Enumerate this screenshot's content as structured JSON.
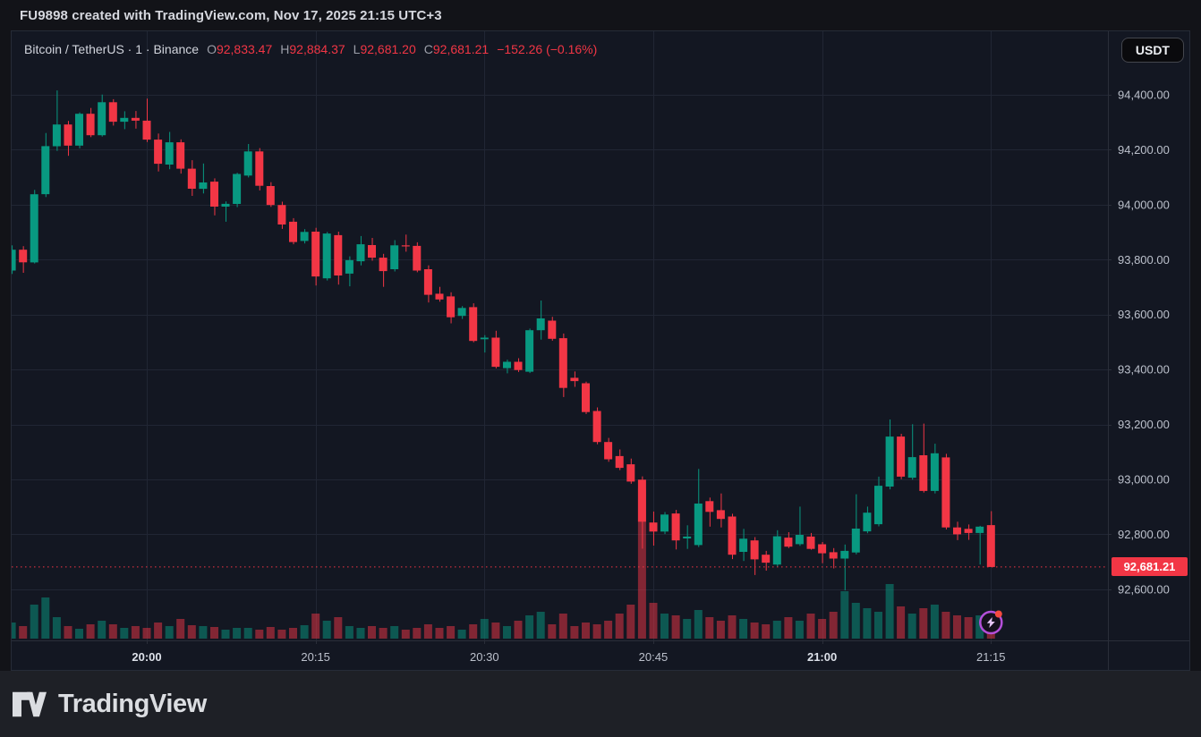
{
  "page": {
    "title_bar": "FU9898 created with TradingView.com, Nov 17, 2025 21:15 UTC+3"
  },
  "header": {
    "symbol_title": "Bitcoin / TetherUS · 1 · Binance",
    "ohlc": {
      "o_label": "O",
      "o": "92,833.47",
      "h_label": "H",
      "h": "92,884.37",
      "l_label": "L",
      "l": "92,681.20",
      "c_label": "C",
      "c": "92,681.21",
      "change": "−152.26 (−0.16%)"
    },
    "currency_button": "USDT"
  },
  "price_scale": {
    "current_price_label": "92,681.21"
  },
  "footer": {
    "brand": "TradingView",
    "logo_icon": "tradingview-logo-icon"
  },
  "colors": {
    "up": "#089981",
    "down": "#f23645",
    "accent_red": "#f23645",
    "chart_background": "#131722",
    "grid": "#212634",
    "axis_line": "#2a2e39",
    "axis_text": "#bcc1cc",
    "axis_text_bold": "#dde1e9",
    "badge_purple": "#b44fd9",
    "badge_bolt": "#e7c7f7",
    "badge_dot": "#f54a3e"
  },
  "chart_data": {
    "type": "candlestick",
    "title": "Bitcoin / TetherUS 1-minute, Binance",
    "xlabel": "time",
    "ylabel": "price (USDT)",
    "grid": true,
    "volume_overlay": true,
    "current_price": 92681.21,
    "y_ticks": [
      {
        "label": "94,400.00",
        "value": 94400
      },
      {
        "label": "94,200.00",
        "value": 94200
      },
      {
        "label": "94,000.00",
        "value": 94000
      },
      {
        "label": "93,800.00",
        "value": 93800
      },
      {
        "label": "93,600.00",
        "value": 93600
      },
      {
        "label": "93,400.00",
        "value": 93400
      },
      {
        "label": "93,200.00",
        "value": 93200
      },
      {
        "label": "93,000.00",
        "value": 93000
      },
      {
        "label": "92,800.00",
        "value": 92800
      },
      {
        "label": "92,600.00",
        "value": 92600
      }
    ],
    "x_ticks": [
      {
        "label": "20:00",
        "index": 12,
        "bold": true
      },
      {
        "label": "20:15",
        "index": 27,
        "bold": false
      },
      {
        "label": "20:30",
        "index": 42,
        "bold": false
      },
      {
        "label": "20:45",
        "index": 57,
        "bold": false
      },
      {
        "label": "21:00",
        "index": 72,
        "bold": true
      },
      {
        "label": "21:15",
        "index": 87,
        "bold": false
      }
    ],
    "candles_format": [
      "time",
      "open",
      "high",
      "low",
      "close",
      "volume_px"
    ],
    "candles": [
      [
        "19:48",
        93760,
        93852,
        93748,
        93836,
        18
      ],
      [
        "19:49",
        93836,
        93849,
        93752,
        93790,
        14
      ],
      [
        "19:50",
        93790,
        94054,
        93786,
        94038,
        38
      ],
      [
        "19:51",
        94038,
        94261,
        94028,
        94213,
        46
      ],
      [
        "19:52",
        94213,
        94416,
        94196,
        94292,
        24
      ],
      [
        "19:53",
        94292,
        94305,
        94178,
        94215,
        14
      ],
      [
        "19:54",
        94215,
        94336,
        94205,
        94331,
        11
      ],
      [
        "19:55",
        94331,
        94352,
        94246,
        94253,
        16
      ],
      [
        "19:56",
        94253,
        94401,
        94248,
        94373,
        20
      ],
      [
        "19:57",
        94373,
        94384,
        94288,
        94302,
        16
      ],
      [
        "19:58",
        94302,
        94340,
        94275,
        94316,
        12
      ],
      [
        "19:59",
        94316,
        94341,
        94277,
        94306,
        14
      ],
      [
        "20:00",
        94306,
        94386,
        94228,
        94237,
        12
      ],
      [
        "20:01",
        94237,
        94259,
        94121,
        94149,
        18
      ],
      [
        "20:02",
        94146,
        94265,
        94129,
        94227,
        14
      ],
      [
        "20:03",
        94227,
        94238,
        94113,
        94131,
        22
      ],
      [
        "20:04",
        94131,
        94162,
        94032,
        94058,
        15
      ],
      [
        "20:05",
        94058,
        94150,
        94041,
        94081,
        14
      ],
      [
        "20:06",
        94084,
        94096,
        93961,
        93993,
        13
      ],
      [
        "20:07",
        93993,
        94012,
        93938,
        94003,
        10
      ],
      [
        "20:08",
        94003,
        94116,
        93991,
        94112,
        12
      ],
      [
        "20:09",
        94106,
        94221,
        94099,
        94194,
        12
      ],
      [
        "20:10",
        94194,
        94206,
        94052,
        94069,
        10
      ],
      [
        "20:11",
        94068,
        94082,
        93992,
        93999,
        13
      ],
      [
        "20:12",
        93999,
        94011,
        93912,
        93928,
        10
      ],
      [
        "20:13",
        93938,
        93951,
        93856,
        93864,
        12
      ],
      [
        "20:14",
        93868,
        93911,
        93859,
        93901,
        15
      ],
      [
        "20:15",
        93902,
        93916,
        93706,
        93739,
        28
      ],
      [
        "20:16",
        93732,
        93901,
        93724,
        93895,
        20
      ],
      [
        "20:17",
        93889,
        93902,
        93709,
        93742,
        24
      ],
      [
        "20:18",
        93749,
        93812,
        93703,
        93798,
        14
      ],
      [
        "20:19",
        93794,
        93886,
        93779,
        93856,
        12
      ],
      [
        "20:20",
        93853,
        93879,
        93796,
        93807,
        14
      ],
      [
        "20:21",
        93807,
        93821,
        93701,
        93758,
        12
      ],
      [
        "20:22",
        93765,
        93871,
        93757,
        93852,
        14
      ],
      [
        "20:23",
        93852,
        93891,
        93829,
        93848,
        10
      ],
      [
        "20:24",
        93850,
        93863,
        93754,
        93760,
        12
      ],
      [
        "20:25",
        93765,
        93779,
        93644,
        93672,
        16
      ],
      [
        "20:26",
        93676,
        93701,
        93647,
        93655,
        12
      ],
      [
        "20:27",
        93666,
        93681,
        93568,
        93590,
        14
      ],
      [
        "20:28",
        93595,
        93631,
        93584,
        93624,
        10
      ],
      [
        "20:29",
        93627,
        93641,
        93499,
        93504,
        16
      ],
      [
        "20:30",
        93510,
        93525,
        93462,
        93516,
        22
      ],
      [
        "20:31",
        93516,
        93541,
        93404,
        93410,
        18
      ],
      [
        "20:32",
        93405,
        93436,
        93386,
        93428,
        14
      ],
      [
        "20:33",
        93428,
        93441,
        93391,
        93398,
        20
      ],
      [
        "20:34",
        93392,
        93549,
        93387,
        93543,
        26
      ],
      [
        "20:35",
        93543,
        93651,
        93509,
        93586,
        30
      ],
      [
        "20:36",
        93578,
        93592,
        93505,
        93512,
        16
      ],
      [
        "20:37",
        93514,
        93531,
        93300,
        93333,
        28
      ],
      [
        "20:38",
        93370,
        93393,
        93337,
        93358,
        14
      ],
      [
        "20:39",
        93350,
        93356,
        93238,
        93245,
        18
      ],
      [
        "20:40",
        93249,
        93262,
        93128,
        93136,
        16
      ],
      [
        "20:41",
        93136,
        93151,
        93064,
        93073,
        20
      ],
      [
        "20:42",
        93085,
        93109,
        93034,
        93042,
        28
      ],
      [
        "20:43",
        93055,
        93076,
        92984,
        92992,
        38
      ],
      [
        "20:44",
        92999,
        93011,
        92748,
        92846,
        168
      ],
      [
        "20:45",
        92843,
        92883,
        92759,
        92810,
        40
      ],
      [
        "20:46",
        92810,
        92881,
        92801,
        92872,
        28
      ],
      [
        "20:47",
        92876,
        92889,
        92745,
        92778,
        26
      ],
      [
        "20:48",
        92785,
        92833,
        92747,
        92792,
        22
      ],
      [
        "20:49",
        92761,
        93038,
        92754,
        92912,
        32
      ],
      [
        "20:50",
        92921,
        92934,
        92828,
        92882,
        24
      ],
      [
        "20:51",
        92888,
        92949,
        92825,
        92856,
        20
      ],
      [
        "20:52",
        92865,
        92875,
        92710,
        92726,
        26
      ],
      [
        "20:53",
        92736,
        92820,
        92703,
        92784,
        22
      ],
      [
        "20:54",
        92778,
        92790,
        92652,
        92709,
        18
      ],
      [
        "20:55",
        92726,
        92740,
        92668,
        92697,
        16
      ],
      [
        "20:56",
        92690,
        92815,
        92683,
        92793,
        20
      ],
      [
        "20:57",
        92788,
        92808,
        92750,
        92755,
        24
      ],
      [
        "20:58",
        92764,
        92901,
        92758,
        92798,
        20
      ],
      [
        "20:59",
        92792,
        92805,
        92744,
        92747,
        28
      ],
      [
        "21:00",
        92764,
        92772,
        92695,
        92731,
        22
      ],
      [
        "21:01",
        92735,
        92750,
        92676,
        92712,
        30
      ],
      [
        "21:02",
        92712,
        92763,
        92596,
        92740,
        53
      ],
      [
        "21:03",
        92734,
        92946,
        92727,
        92821,
        40
      ],
      [
        "21:04",
        92811,
        92901,
        92804,
        92879,
        34
      ],
      [
        "21:05",
        92837,
        93010,
        92829,
        92977,
        30
      ],
      [
        "21:06",
        92974,
        93218,
        92964,
        93156,
        61
      ],
      [
        "21:07",
        93156,
        93166,
        93001,
        93010,
        36
      ],
      [
        "21:08",
        93006,
        93201,
        92999,
        93081,
        28
      ],
      [
        "21:09",
        93088,
        93203,
        92952,
        92958,
        34
      ],
      [
        "21:10",
        92958,
        93130,
        92949,
        93095,
        38
      ],
      [
        "21:11",
        93080,
        93093,
        92818,
        92825,
        30
      ],
      [
        "21:12",
        92825,
        92846,
        92779,
        92800,
        26
      ],
      [
        "21:13",
        92820,
        92836,
        92780,
        92805,
        24
      ],
      [
        "21:14",
        92805,
        92831,
        92690,
        92828,
        26
      ],
      [
        "21:15",
        92833.47,
        92884.37,
        92681.2,
        92681.21,
        30
      ]
    ]
  }
}
